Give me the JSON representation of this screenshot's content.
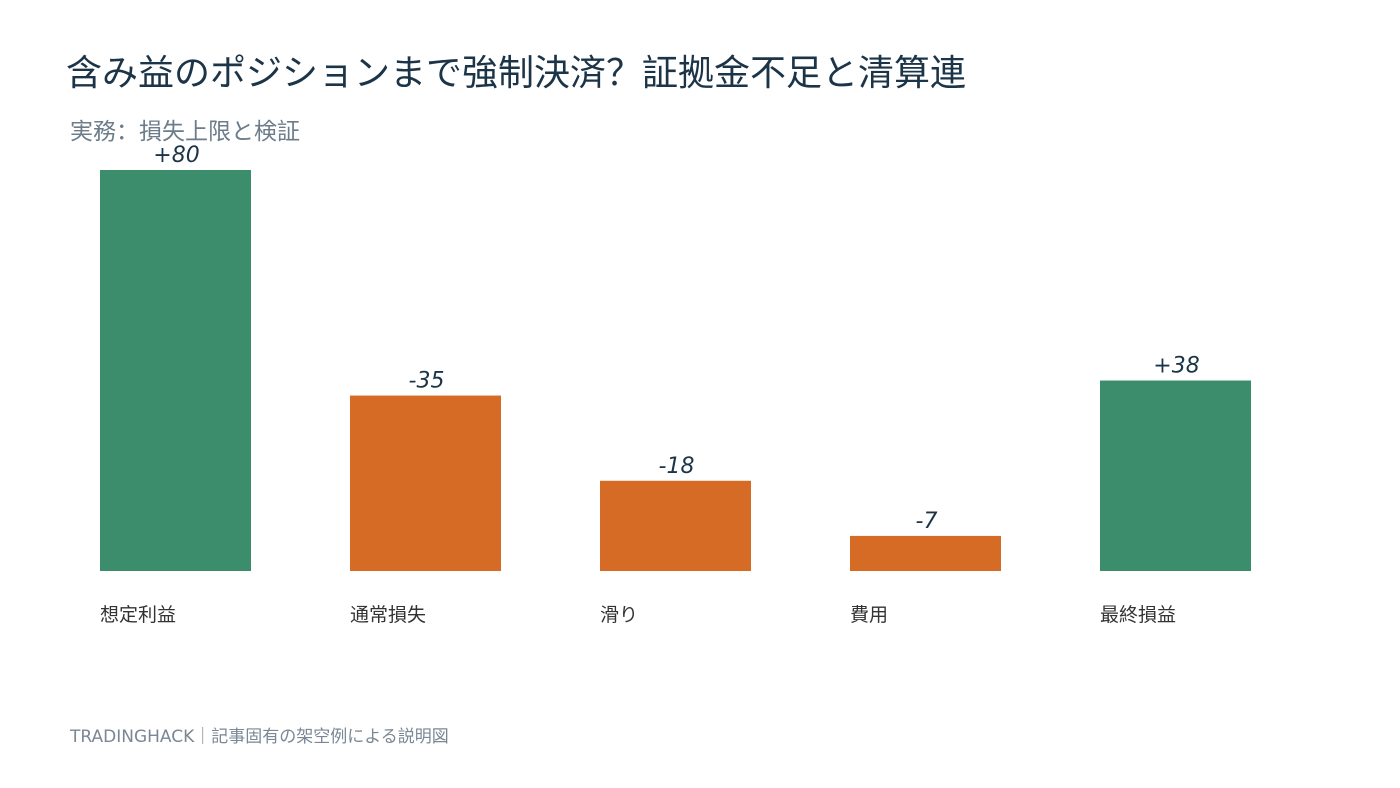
{
  "title": "含み益のポジションまで強制決済？証拠金不足と清算連",
  "subtitle": "実務：損失上限と検証",
  "footer": "TRADINGHACK｜記事固有の架空例による説明図",
  "colors": {
    "positive": "#3b8d6b",
    "negative": "#d56b24",
    "value_label": "#1c3447",
    "category_label": "#333333"
  },
  "chart_data": {
    "type": "bar",
    "categories": [
      "想定利益",
      "通常損失",
      "滑り",
      "費用",
      "最終損益"
    ],
    "values": [
      80,
      -35,
      -18,
      -7,
      38
    ],
    "value_labels": [
      "+80",
      "-35",
      "-18",
      "-7",
      "+38"
    ],
    "title": "含み益のポジションまで強制決済？証拠金不足と清算連",
    "subtitle": "実務：損失上限と検証",
    "xlabel": "",
    "ylabel": "",
    "ylim": [
      0,
      80
    ],
    "grid": false,
    "legend": "none"
  }
}
